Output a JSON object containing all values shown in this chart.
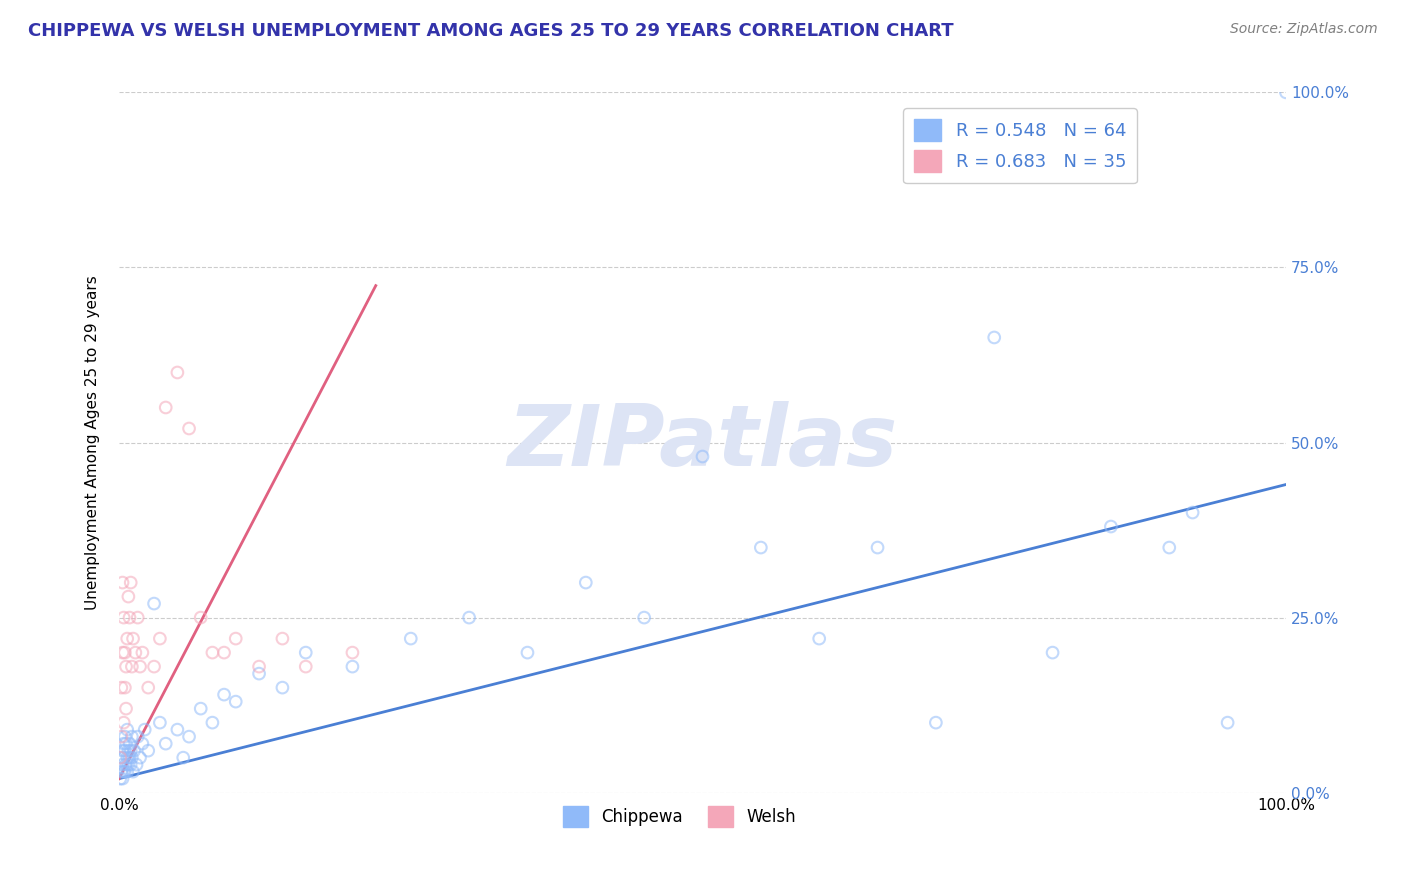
{
  "title": "CHIPPEWA VS WELSH UNEMPLOYMENT AMONG AGES 25 TO 29 YEARS CORRELATION CHART",
  "source_text": "Source: ZipAtlas.com",
  "ylabel": "Unemployment Among Ages 25 to 29 years",
  "xlim": [
    0.0,
    1.0
  ],
  "ylim": [
    0.0,
    1.0
  ],
  "ytick_labels": [
    "0.0%",
    "25.0%",
    "50.0%",
    "75.0%",
    "100.0%"
  ],
  "ytick_values": [
    0.0,
    0.25,
    0.5,
    0.75,
    1.0
  ],
  "chippewa_R": 0.548,
  "chippewa_N": 64,
  "welsh_R": 0.683,
  "welsh_N": 35,
  "chippewa_color": "#90baf9",
  "welsh_color": "#f4a7b9",
  "chippewa_line_color": "#4a7fd4",
  "welsh_line_color": "#e06080",
  "legend_text_color": "#4a7fd4",
  "title_color": "#3333aa",
  "background_color": "#ffffff",
  "watermark_text": "ZIPatlas",
  "watermark_color": "#dde4f5",
  "chippewa_x": [
    0.001,
    0.002,
    0.002,
    0.003,
    0.003,
    0.003,
    0.004,
    0.004,
    0.004,
    0.005,
    0.005,
    0.005,
    0.006,
    0.006,
    0.007,
    0.007,
    0.007,
    0.008,
    0.008,
    0.009,
    0.009,
    0.01,
    0.01,
    0.011,
    0.011,
    0.012,
    0.013,
    0.015,
    0.016,
    0.018,
    0.02,
    0.022,
    0.025,
    0.03,
    0.035,
    0.04,
    0.05,
    0.055,
    0.06,
    0.07,
    0.08,
    0.09,
    0.1,
    0.12,
    0.14,
    0.16,
    0.2,
    0.25,
    0.3,
    0.35,
    0.4,
    0.45,
    0.5,
    0.55,
    0.6,
    0.65,
    0.7,
    0.75,
    0.8,
    0.85,
    0.9,
    0.92,
    0.95,
    1.0
  ],
  "chippewa_y": [
    0.02,
    0.03,
    0.05,
    0.04,
    0.06,
    0.02,
    0.05,
    0.07,
    0.03,
    0.06,
    0.08,
    0.03,
    0.04,
    0.07,
    0.03,
    0.05,
    0.09,
    0.04,
    0.06,
    0.05,
    0.07,
    0.04,
    0.06,
    0.05,
    0.08,
    0.03,
    0.06,
    0.04,
    0.08,
    0.05,
    0.07,
    0.09,
    0.06,
    0.27,
    0.1,
    0.07,
    0.09,
    0.05,
    0.08,
    0.12,
    0.1,
    0.14,
    0.13,
    0.17,
    0.15,
    0.2,
    0.18,
    0.22,
    0.25,
    0.2,
    0.3,
    0.25,
    0.48,
    0.35,
    0.22,
    0.35,
    0.1,
    0.65,
    0.2,
    0.38,
    0.35,
    0.4,
    0.1,
    1.0
  ],
  "welsh_x": [
    0.001,
    0.002,
    0.002,
    0.003,
    0.003,
    0.004,
    0.004,
    0.005,
    0.005,
    0.006,
    0.006,
    0.007,
    0.008,
    0.009,
    0.01,
    0.011,
    0.012,
    0.014,
    0.016,
    0.018,
    0.02,
    0.025,
    0.03,
    0.035,
    0.04,
    0.05,
    0.06,
    0.07,
    0.08,
    0.09,
    0.1,
    0.12,
    0.14,
    0.16,
    0.2
  ],
  "welsh_y": [
    0.05,
    0.08,
    0.15,
    0.2,
    0.3,
    0.1,
    0.25,
    0.15,
    0.2,
    0.12,
    0.18,
    0.22,
    0.28,
    0.25,
    0.3,
    0.18,
    0.22,
    0.2,
    0.25,
    0.18,
    0.2,
    0.15,
    0.18,
    0.22,
    0.55,
    0.6,
    0.52,
    0.25,
    0.2,
    0.2,
    0.22,
    0.18,
    0.22,
    0.18,
    0.2
  ],
  "chippewa_slope": 0.42,
  "chippewa_intercept": 0.02,
  "welsh_slope": 3.2,
  "welsh_intercept": 0.02,
  "welsh_line_xend": 0.22,
  "grid_color": "#cccccc",
  "grid_style": "--",
  "scatter_size": 70,
  "scatter_alpha": 0.55,
  "scatter_linewidth": 1.5
}
